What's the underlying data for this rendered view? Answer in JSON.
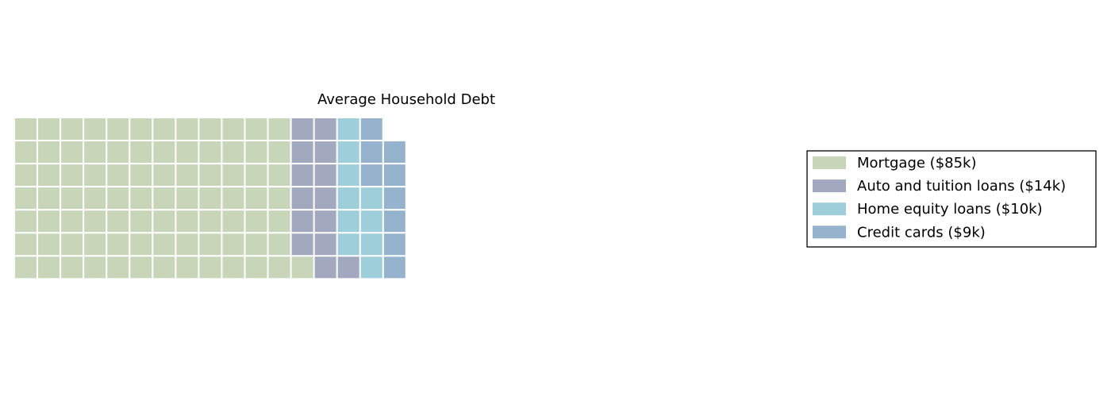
{
  "chart_data": {
    "type": "waffle",
    "title": "Average Household Debt",
    "rows": 7,
    "columns": 34,
    "fill_direction": "column-wise, bottom-to-top, left-to-right",
    "series": [
      {
        "name": "Mortgage ($85k)",
        "value": 85,
        "color": "#c9d5b9"
      },
      {
        "name": "Auto and tuition loans ($14k)",
        "value": 14,
        "color": "#a2a8be"
      },
      {
        "name": "Home equity loans ($10k)",
        "value": 10,
        "color": "#9fcedb"
      },
      {
        "name": "Credit cards ($9k)",
        "value": 9,
        "color": "#95b3cd"
      }
    ],
    "legend_position": "right"
  }
}
